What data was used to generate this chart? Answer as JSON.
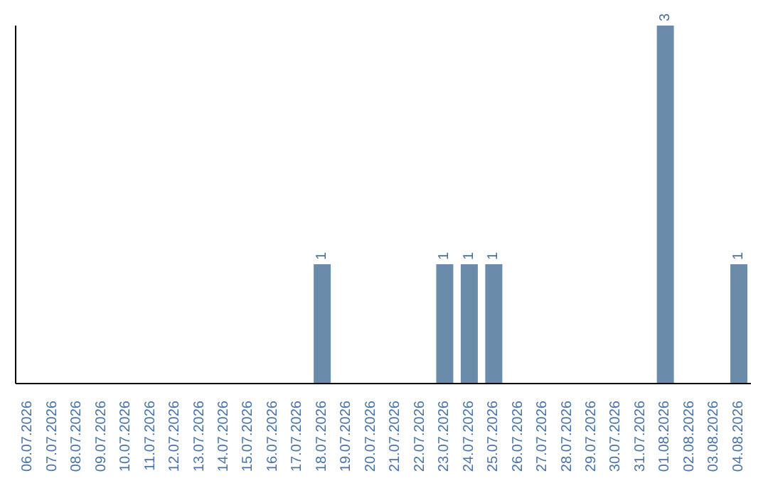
{
  "chart_data": {
    "type": "bar",
    "categories": [
      "06.07.2026",
      "07.07.2026",
      "08.07.2026",
      "09.07.2026",
      "10.07.2026",
      "11.07.2026",
      "12.07.2026",
      "13.07.2026",
      "14.07.2026",
      "15.07.2026",
      "16.07.2026",
      "17.07.2026",
      "18.07.2026",
      "19.07.2026",
      "20.07.2026",
      "21.07.2026",
      "22.07.2026",
      "23.07.2026",
      "24.07.2026",
      "25.07.2026",
      "26.07.2026",
      "27.07.2026",
      "28.07.2026",
      "29.07.2026",
      "30.07.2026",
      "31.07.2026",
      "01.08.2026",
      "02.08.2026",
      "03.08.2026",
      "04.08.2026"
    ],
    "values": [
      null,
      null,
      null,
      null,
      null,
      null,
      null,
      null,
      null,
      null,
      null,
      null,
      1,
      null,
      null,
      null,
      null,
      1,
      1,
      1,
      null,
      null,
      null,
      null,
      null,
      null,
      3,
      null,
      null,
      1
    ],
    "value_labels": [
      null,
      null,
      null,
      null,
      null,
      null,
      null,
      null,
      null,
      null,
      null,
      null,
      "1",
      null,
      null,
      null,
      null,
      "1",
      "1",
      "1",
      null,
      null,
      null,
      null,
      null,
      null,
      "3",
      null,
      null,
      "1"
    ],
    "color": "#6a8caa",
    "tick_labels": "x",
    "grid": false,
    "legend": false
  }
}
